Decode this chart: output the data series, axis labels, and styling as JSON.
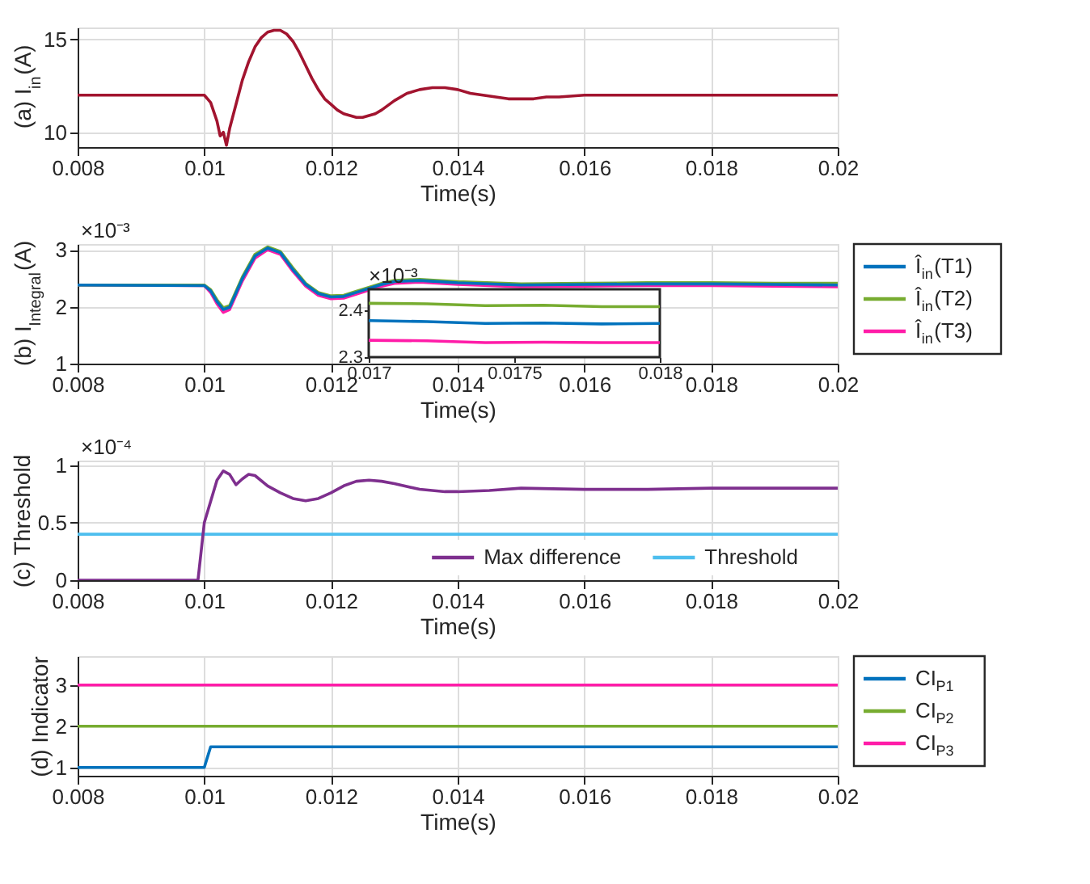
{
  "chart_data": [
    {
      "type": "line",
      "ylabel": "(a) I$_{in}$(A)",
      "xlabel": "Time(s)",
      "xlim": [
        0.008,
        0.02
      ],
      "xticks": [
        0.008,
        0.01,
        0.012,
        0.014,
        0.016,
        0.018,
        0.02
      ],
      "ylim": [
        9.2,
        15.65
      ],
      "yticks": [
        10,
        15
      ],
      "grid": true,
      "legend": false,
      "x": [
        0.008,
        0.01,
        0.0101,
        0.0102,
        0.01025,
        0.0103,
        0.01035,
        0.0104,
        0.0105,
        0.0106,
        0.0107,
        0.0108,
        0.0109,
        0.011,
        0.0111,
        0.0112,
        0.0113,
        0.0114,
        0.0115,
        0.0116,
        0.0117,
        0.0118,
        0.0119,
        0.012,
        0.0121,
        0.0122,
        0.0123,
        0.0124,
        0.0125,
        0.0126,
        0.0127,
        0.0128,
        0.013,
        0.0132,
        0.0134,
        0.0136,
        0.0138,
        0.014,
        0.0142,
        0.0144,
        0.0146,
        0.0148,
        0.015,
        0.0152,
        0.0154,
        0.0156,
        0.016,
        0.017,
        0.018,
        0.019,
        0.02
      ],
      "series": [
        {
          "color": "#a2142f",
          "values": [
            12,
            12,
            11.6,
            10.6,
            9.8,
            10.0,
            9.3,
            10.2,
            11.5,
            12.8,
            13.8,
            14.6,
            15.1,
            15.4,
            15.5,
            15.5,
            15.3,
            14.9,
            14.3,
            13.6,
            12.9,
            12.3,
            11.8,
            11.5,
            11.2,
            11.0,
            10.9,
            10.8,
            10.8,
            10.9,
            11.0,
            11.2,
            11.7,
            12.1,
            12.3,
            12.4,
            12.4,
            12.3,
            12.1,
            12.0,
            11.9,
            11.8,
            11.8,
            11.8,
            11.9,
            11.9,
            12.0,
            12.0,
            12.0,
            12.0,
            12.0
          ]
        }
      ]
    },
    {
      "type": "line",
      "ylabel": "(b) I$_{Integral}$(A)",
      "xlabel": "Time(s)",
      "annotations": [
        "×10⁻³"
      ],
      "xlim": [
        0.008,
        0.02
      ],
      "xticks": [
        0.008,
        0.01,
        0.012,
        0.014,
        0.016,
        0.018,
        0.02
      ],
      "ylim": [
        1,
        3.1
      ],
      "yticks": [
        1,
        2,
        3
      ],
      "grid": true,
      "legend": "right",
      "x": [
        0.008,
        0.01,
        0.0101,
        0.0102,
        0.0103,
        0.0104,
        0.0106,
        0.0108,
        0.011,
        0.0112,
        0.0114,
        0.0116,
        0.0118,
        0.012,
        0.0122,
        0.0124,
        0.0128,
        0.013,
        0.0134,
        0.014,
        0.015,
        0.016,
        0.017,
        0.018,
        0.019,
        0.02
      ],
      "series": [
        {
          "name": "Î$_{in}$(T1)",
          "color": "#0072bd",
          "values": [
            2.38,
            2.37,
            2.28,
            2.09,
            1.95,
            1.99,
            2.49,
            2.89,
            3.03,
            2.95,
            2.65,
            2.39,
            2.23,
            2.17,
            2.18,
            2.25,
            2.39,
            2.44,
            2.46,
            2.42,
            2.38,
            2.39,
            2.4,
            2.4,
            2.39,
            2.38
          ]
        },
        {
          "name": "Î$_{in}$(T2)",
          "color": "#77ac30",
          "values": [
            2.38,
            2.38,
            2.3,
            2.12,
            1.98,
            2.02,
            2.52,
            2.92,
            3.05,
            2.97,
            2.68,
            2.41,
            2.25,
            2.19,
            2.2,
            2.27,
            2.41,
            2.46,
            2.48,
            2.44,
            2.4,
            2.41,
            2.42,
            2.42,
            2.41,
            2.41
          ]
        },
        {
          "name": "Î$_{in}$(T3)",
          "color": "#ff1ca8",
          "values": [
            2.38,
            2.37,
            2.25,
            2.05,
            1.9,
            1.95,
            2.45,
            2.85,
            3.0,
            2.92,
            2.62,
            2.36,
            2.2,
            2.14,
            2.15,
            2.22,
            2.36,
            2.41,
            2.43,
            2.39,
            2.35,
            2.36,
            2.37,
            2.37,
            2.36,
            2.35
          ]
        }
      ]
    },
    {
      "type": "line",
      "annotations": [
        "×10⁻³"
      ],
      "xlim": [
        0.017,
        0.018
      ],
      "xticks": [
        0.017,
        0.0175,
        0.018
      ],
      "ylim": [
        2.3,
        2.445
      ],
      "yticks": [
        2.3,
        2.4
      ],
      "x": [
        0.017,
        0.0172,
        0.0174,
        0.0176,
        0.0178,
        0.018
      ],
      "series": [
        {
          "color": "#0072bd",
          "values": [
            2.378,
            2.376,
            2.372,
            2.373,
            2.371,
            2.372
          ]
        },
        {
          "color": "#77ac30",
          "values": [
            2.415,
            2.414,
            2.41,
            2.411,
            2.408,
            2.408
          ]
        },
        {
          "color": "#ff1ca8",
          "values": [
            2.336,
            2.335,
            2.331,
            2.332,
            2.331,
            2.331
          ]
        }
      ]
    },
    {
      "type": "line",
      "ylabel": "(c) Threshold",
      "xlabel": "Time(s)",
      "annotations": [
        "×10⁻⁴"
      ],
      "xlim": [
        0.008,
        0.02
      ],
      "xticks": [
        0.008,
        0.01,
        0.012,
        0.014,
        0.016,
        0.018,
        0.02
      ],
      "ylim": [
        0,
        1.04
      ],
      "yticks": [
        0,
        0.5,
        1
      ],
      "grid": true,
      "legend": "bottom right",
      "x": [
        0.008,
        0.0099,
        0.01,
        0.0102,
        0.0103,
        0.0104,
        0.0105,
        0.0106,
        0.0107,
        0.0108,
        0.011,
        0.0112,
        0.0114,
        0.0116,
        0.0118,
        0.012,
        0.0122,
        0.0124,
        0.0126,
        0.0128,
        0.013,
        0.0134,
        0.0138,
        0.014,
        0.0145,
        0.015,
        0.016,
        0.017,
        0.018,
        0.02
      ],
      "series": [
        {
          "name": "Max difference",
          "color": "#7e2f8e",
          "values": [
            0,
            0,
            0.5,
            0.87,
            0.95,
            0.92,
            0.83,
            0.88,
            0.92,
            0.91,
            0.82,
            0.76,
            0.71,
            0.69,
            0.71,
            0.76,
            0.82,
            0.86,
            0.87,
            0.86,
            0.84,
            0.79,
            0.77,
            0.77,
            0.78,
            0.8,
            0.79,
            0.79,
            0.8,
            0.8
          ]
        },
        {
          "name": "Threshold",
          "color": "#4dbeee",
          "x": [
            0.008,
            0.02
          ],
          "values": [
            0.4,
            0.4
          ]
        }
      ]
    },
    {
      "type": "line",
      "ylabel": "(d) Indicator",
      "xlabel": "Time(s)",
      "xlim": [
        0.008,
        0.02
      ],
      "xticks": [
        0.008,
        0.01,
        0.012,
        0.014,
        0.016,
        0.018,
        0.02
      ],
      "ylim": [
        0.8,
        3.7
      ],
      "yticks": [
        1,
        2,
        3
      ],
      "grid": true,
      "legend": "right",
      "x": [
        0.008,
        0.01,
        0.0101,
        0.02
      ],
      "series": [
        {
          "name": "CI$_{P1}$",
          "color": "#0072bd",
          "values": [
            1,
            1,
            1.5,
            1.5
          ]
        },
        {
          "name": "CI$_{P2}$",
          "color": "#77ac30",
          "values": [
            2,
            2,
            2,
            2
          ]
        },
        {
          "name": "CI$_{P3}$",
          "color": "#ff1ca8",
          "values": [
            3,
            3,
            3,
            3
          ]
        }
      ]
    }
  ]
}
